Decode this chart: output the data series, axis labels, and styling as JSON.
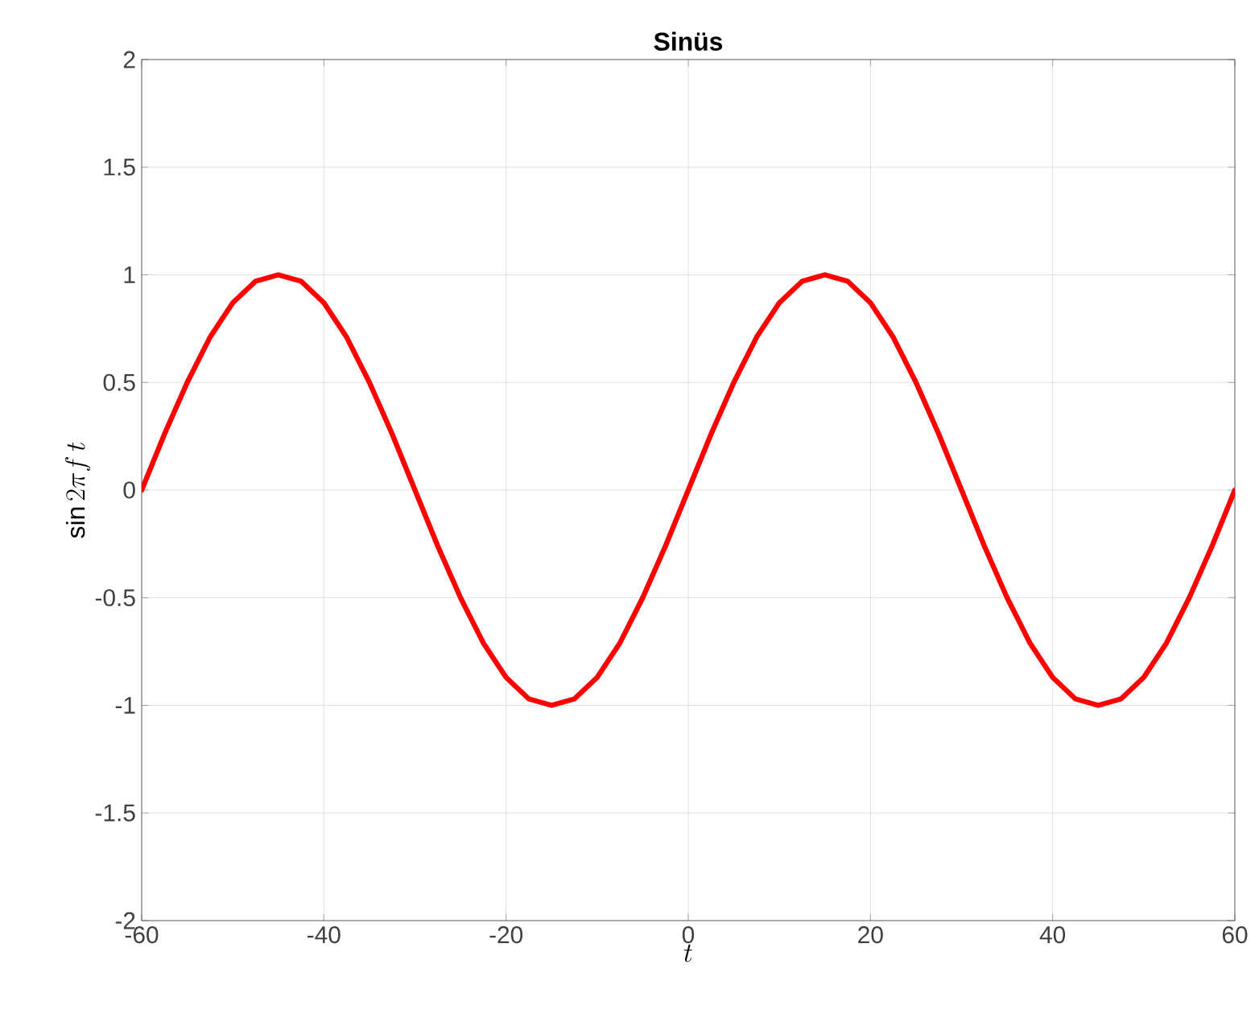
{
  "chart_data": {
    "type": "line",
    "title": "**Sinüs**",
    "xlabel": "t",
    "ylabel": "\\sin 2\\pi f\\,t",
    "x": [
      -60,
      -57.5,
      -55,
      -52.5,
      -50,
      -47.5,
      -45,
      -42.5,
      -40,
      -37.5,
      -35,
      -32.5,
      -30,
      -27.5,
      -25,
      -22.5,
      -20,
      -17.5,
      -15,
      -12.5,
      -10,
      -7.5,
      -5,
      -2.5,
      0,
      2.5,
      5,
      7.5,
      10,
      12.5,
      15,
      17.5,
      20,
      22.5,
      25,
      27.5,
      30,
      32.5,
      35,
      37.5,
      40,
      42.5,
      45,
      47.5,
      50,
      52.5,
      55,
      57.5,
      60
    ],
    "series": [
      {
        "color": "#ff0000",
        "values": [
          0,
          0.26,
          0.5,
          0.71,
          0.87,
          0.97,
          1,
          0.97,
          0.87,
          0.71,
          0.5,
          0.26,
          0,
          -0.26,
          -0.5,
          -0.71,
          -0.87,
          -0.97,
          -1,
          -0.97,
          -0.87,
          -0.71,
          -0.5,
          -0.26,
          0,
          0.26,
          0.5,
          0.71,
          0.87,
          0.97,
          1,
          0.97,
          0.87,
          0.71,
          0.5,
          0.26,
          0,
          -0.26,
          -0.5,
          -0.71,
          -0.87,
          -0.97,
          -1,
          -0.97,
          -0.87,
          -0.71,
          -0.5,
          -0.26,
          0
        ]
      }
    ],
    "xlim": [
      -60,
      60
    ],
    "ylim": [
      -2,
      2
    ],
    "xticks": [
      -60,
      -40,
      -20,
      0,
      20,
      40,
      60
    ],
    "yticks": [
      -2,
      -1.5,
      -1,
      -0.5,
      0,
      0.5,
      1,
      1.5,
      2
    ],
    "grid": true,
    "marker": "none",
    "line_style": "solid"
  }
}
